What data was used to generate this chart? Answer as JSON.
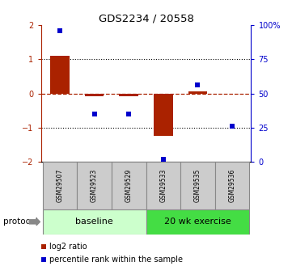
{
  "title": "GDS2234 / 20558",
  "samples": [
    "GSM29507",
    "GSM29523",
    "GSM29529",
    "GSM29533",
    "GSM29535",
    "GSM29536"
  ],
  "log2_ratio": [
    1.1,
    -0.07,
    -0.07,
    -1.25,
    0.05,
    0.0
  ],
  "percentile_rank": [
    96,
    35,
    35,
    2,
    56,
    26
  ],
  "ylim": [
    -2,
    2
  ],
  "y2lim": [
    0,
    100
  ],
  "yticks_left": [
    -2,
    -1,
    0,
    1,
    2
  ],
  "yticks_right": [
    0,
    25,
    50,
    75,
    100
  ],
  "ytick_labels_right": [
    "0",
    "25",
    "50",
    "75",
    "100%"
  ],
  "bar_color": "#aa2200",
  "dot_color": "#0000cc",
  "dotted_lines": [
    -1,
    1
  ],
  "n_baseline": 3,
  "n_exercise": 3,
  "baseline_color": "#ccffcc",
  "exercise_color": "#44dd44",
  "protocol_label": "protocol",
  "baseline_label": "baseline",
  "exercise_label": "20 wk exercise",
  "legend_bar_label": "log2 ratio",
  "legend_dot_label": "percentile rank within the sample",
  "bar_width": 0.55,
  "sample_box_color": "#cccccc",
  "sample_box_edge": "#888888"
}
